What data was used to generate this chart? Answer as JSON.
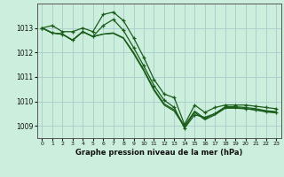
{
  "background_color": "#cceedd",
  "grid_color": "#aacccc",
  "line_color": "#1a5c1a",
  "marker_color": "#1a5c1a",
  "title": "Graphe pression niveau de la mer (hPa)",
  "xlim": [
    -0.5,
    23.5
  ],
  "ylim": [
    1008.5,
    1014.0
  ],
  "yticks": [
    1009,
    1010,
    1011,
    1012,
    1013
  ],
  "xticks": [
    0,
    1,
    2,
    3,
    4,
    5,
    6,
    7,
    8,
    9,
    10,
    11,
    12,
    13,
    14,
    15,
    16,
    17,
    18,
    19,
    20,
    21,
    22,
    23
  ],
  "series": [
    {
      "x": [
        0,
        1,
        2,
        3,
        4,
        5,
        6,
        7,
        8,
        9,
        10,
        11,
        12,
        13,
        14,
        15,
        16,
        17,
        18,
        19,
        20,
        21,
        22,
        23
      ],
      "y": [
        1013.0,
        1013.1,
        1012.85,
        1012.85,
        1013.0,
        1012.85,
        1013.55,
        1013.65,
        1013.3,
        1012.6,
        1011.8,
        1010.9,
        1010.3,
        1010.15,
        1009.05,
        1009.85,
        1009.55,
        1009.75,
        1009.85,
        1009.85,
        1009.85,
        1009.8,
        1009.75,
        1009.7
      ],
      "has_markers": true
    },
    {
      "x": [
        0,
        1,
        2,
        3,
        4,
        5,
        6,
        7,
        8,
        9,
        10,
        11,
        12,
        13,
        14,
        15,
        16,
        17,
        18,
        19,
        20,
        21,
        22,
        23
      ],
      "y": [
        1013.0,
        1012.8,
        1012.75,
        1012.5,
        1012.85,
        1012.65,
        1013.1,
        1013.35,
        1012.9,
        1012.2,
        1011.45,
        1010.65,
        1010.05,
        1009.75,
        1008.9,
        1009.45,
        1009.35,
        1009.5,
        1009.75,
        1009.75,
        1009.7,
        1009.65,
        1009.6,
        1009.55
      ],
      "has_markers": true
    },
    {
      "x": [
        0,
        1,
        2,
        3,
        4,
        5,
        6,
        7,
        8,
        9,
        10,
        11,
        12,
        13,
        14,
        15,
        16,
        17,
        18,
        19,
        20,
        21,
        22,
        23
      ],
      "y": [
        1013.0,
        1012.8,
        1012.75,
        1012.5,
        1012.85,
        1012.65,
        1012.75,
        1012.8,
        1012.6,
        1012.0,
        1011.3,
        1010.5,
        1009.9,
        1009.65,
        1009.0,
        1009.6,
        1009.3,
        1009.5,
        1009.78,
        1009.78,
        1009.75,
        1009.7,
        1009.62,
        1009.58
      ],
      "has_markers": false
    },
    {
      "x": [
        0,
        1,
        2,
        3,
        4,
        5,
        6,
        7,
        8,
        9,
        10,
        11,
        12,
        13,
        14,
        15,
        16,
        17,
        18,
        19,
        20,
        21,
        22,
        23
      ],
      "y": [
        1013.0,
        1012.8,
        1012.75,
        1012.5,
        1012.85,
        1012.65,
        1012.75,
        1012.78,
        1012.58,
        1011.95,
        1011.25,
        1010.45,
        1009.85,
        1009.6,
        1008.95,
        1009.55,
        1009.25,
        1009.45,
        1009.72,
        1009.72,
        1009.7,
        1009.65,
        1009.57,
        1009.53
      ],
      "has_markers": false
    }
  ]
}
